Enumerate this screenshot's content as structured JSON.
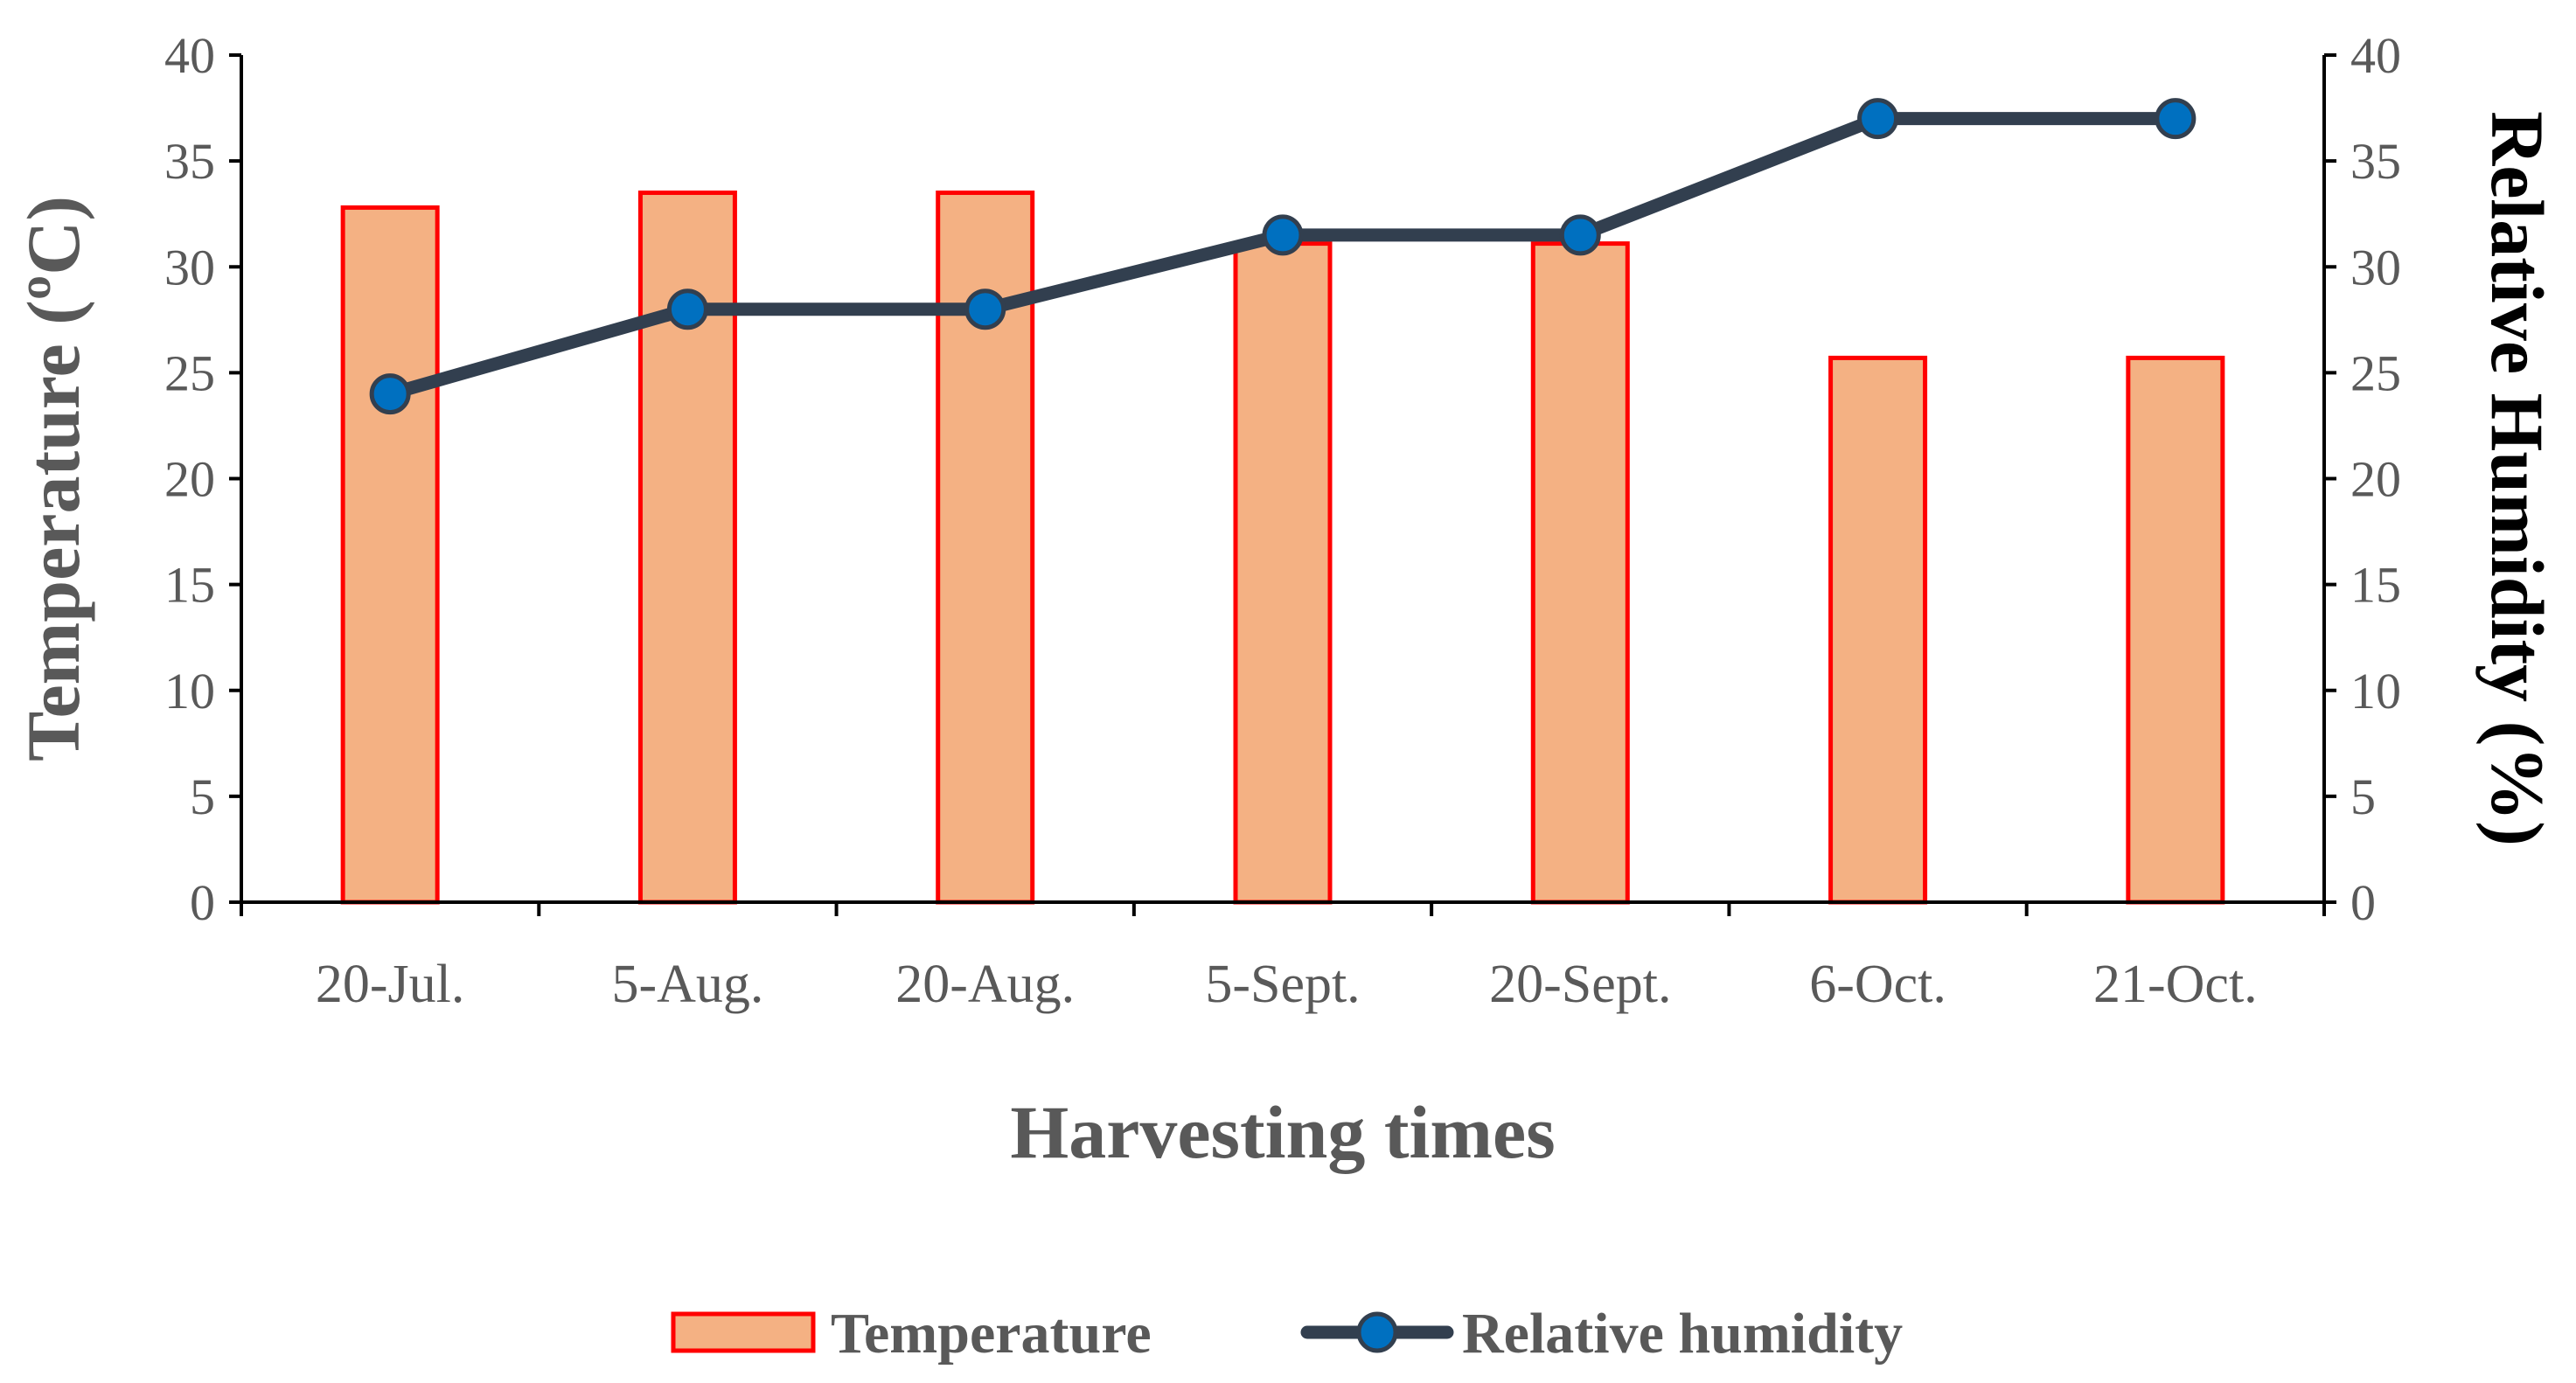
{
  "chart_data": {
    "type": "bar",
    "title": "",
    "categories": [
      "20-Jul.",
      "5-Aug.",
      "20-Aug.",
      "5-Sept.",
      "20-Sept.",
      "6-Oct.",
      "21-Oct."
    ],
    "series": [
      {
        "name": "Temperature",
        "type": "bar",
        "axis": "left",
        "values": [
          32.8,
          33.5,
          33.5,
          31.1,
          31.1,
          25.7,
          25.7
        ]
      },
      {
        "name": "Relative humidity",
        "type": "line",
        "axis": "right",
        "values": [
          24,
          28,
          28,
          31.5,
          31.5,
          37,
          37
        ]
      }
    ],
    "xlabel": "Harvesting times",
    "ylabel": "Temperature (ºC)",
    "y2label": "Relative Humidity (%)",
    "ylim": [
      0,
      40
    ],
    "y2lim": [
      0,
      40
    ],
    "yticks": [
      "0",
      "5",
      "10",
      "15",
      "20",
      "25",
      "30",
      "35",
      "40"
    ],
    "y2ticks": [
      "0",
      "5",
      "10",
      "15",
      "20",
      "25",
      "30",
      "35",
      "40"
    ],
    "grid": false,
    "legend_position": "bottom",
    "colors": {
      "bar_fill": "#F4B183",
      "bar_edge": "#FF0000",
      "line": "#323F4F",
      "marker_fill": "#0070C0",
      "axis": "#000000",
      "text": "#595959"
    }
  }
}
